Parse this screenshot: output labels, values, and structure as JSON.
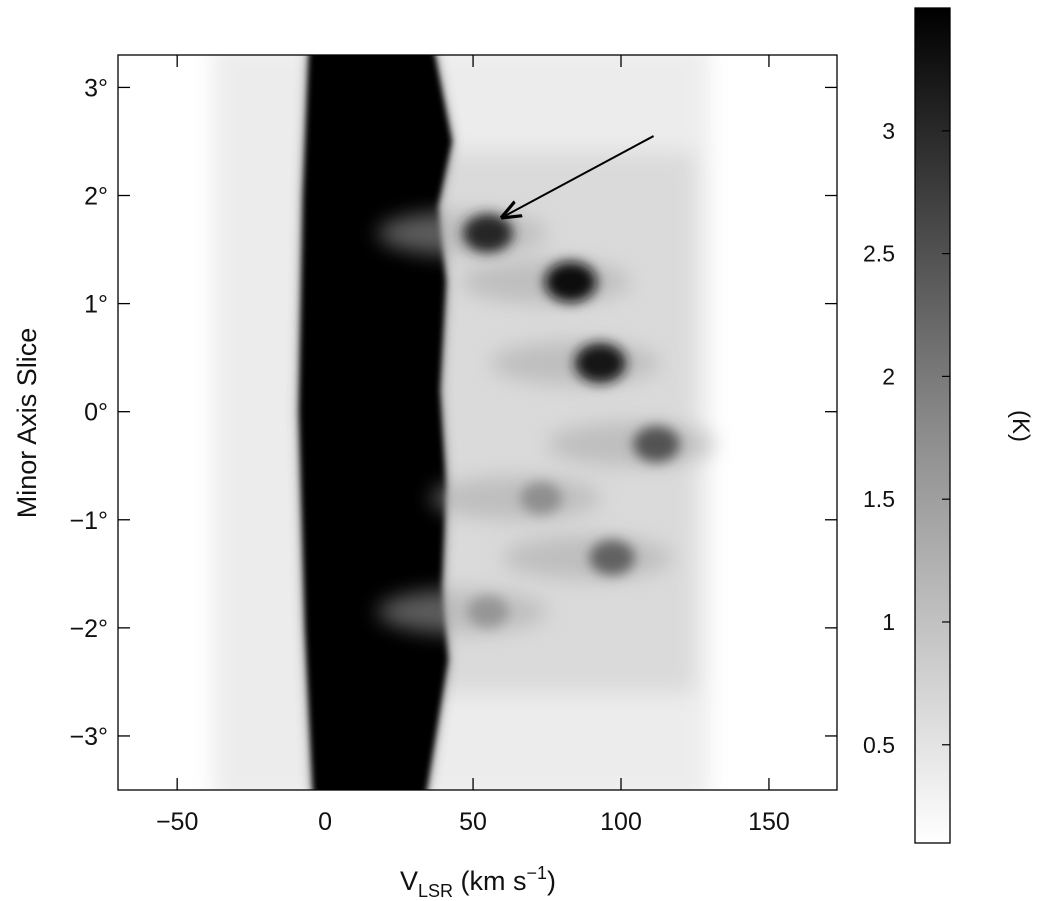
{
  "chart_data": {
    "type": "heatmap",
    "title": "",
    "xlabel": {
      "main": "V",
      "subscript": "LSR",
      "units": "(km s",
      "exponent": "−1",
      "close": ")"
    },
    "ylabel": "Minor Axis Slice",
    "xlim": [
      -70,
      173
    ],
    "ylim": [
      -3.5,
      3.3
    ],
    "x_ticks": [
      {
        "value": -50,
        "label": "−50"
      },
      {
        "value": 0,
        "label": "0"
      },
      {
        "value": 50,
        "label": "50"
      },
      {
        "value": 100,
        "label": "100"
      },
      {
        "value": 150,
        "label": "150"
      }
    ],
    "y_ticks": [
      {
        "value": 3,
        "label": "3°"
      },
      {
        "value": 2,
        "label": "2°"
      },
      {
        "value": 1,
        "label": "1°"
      },
      {
        "value": 0,
        "label": "0°"
      },
      {
        "value": -1,
        "label": "−1°"
      },
      {
        "value": -2,
        "label": "−2°"
      },
      {
        "value": -3,
        "label": "−3°"
      }
    ],
    "colorbar": {
      "label": "(K)",
      "range": [
        0.1,
        3.5
      ],
      "colormap": "grayscale: white (low) to black (high)",
      "ticks": [
        {
          "value": 3,
          "label": "3"
        },
        {
          "value": 2.5,
          "label": "2.5"
        },
        {
          "value": 2,
          "label": "2"
        },
        {
          "value": 1.5,
          "label": "1.5"
        },
        {
          "value": 1,
          "label": "1"
        },
        {
          "value": 0.5,
          "label": "0.5"
        }
      ]
    },
    "features": [
      {
        "name": "main-emission-band",
        "x_range": [
          -8,
          40
        ],
        "value": 3.5
      },
      {
        "name": "clump",
        "x": 55,
        "y": 1.65,
        "value": 3.0
      },
      {
        "name": "clump",
        "x": 83,
        "y": 1.2,
        "value": 3.3
      },
      {
        "name": "clump",
        "x": 93,
        "y": 0.45,
        "value": 3.2
      },
      {
        "name": "clump",
        "x": 112,
        "y": -0.3,
        "value": 2.4
      },
      {
        "name": "clump",
        "x": 97,
        "y": -1.35,
        "value": 2.2
      },
      {
        "name": "clump",
        "x": 73,
        "y": -0.8,
        "value": 1.6
      },
      {
        "name": "clump",
        "x": 55,
        "y": -1.85,
        "value": 1.5
      }
    ],
    "annotations": [
      {
        "type": "arrow",
        "from": [
          111,
          2.55
        ],
        "to": [
          60,
          1.8
        ]
      }
    ],
    "grid": false,
    "legend": "none"
  }
}
